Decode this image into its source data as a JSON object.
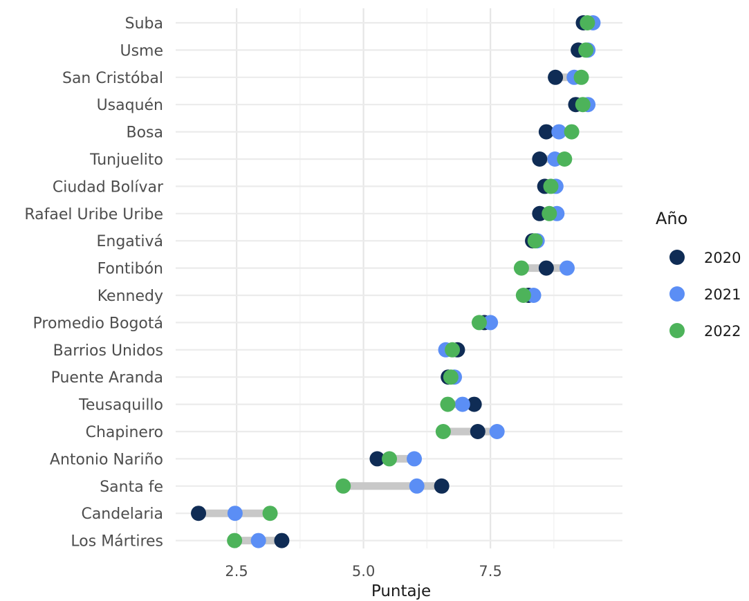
{
  "chart_data": {
    "type": "dumbbell",
    "xlabel": "Puntaje",
    "ylabel": "",
    "xlim": [
      1.3,
      10.1
    ],
    "xticks": [
      2.5,
      5.0,
      7.5
    ],
    "xtick_labels": [
      "2.5",
      "5.0",
      "7.5"
    ],
    "grid": true,
    "legend": {
      "title": "Año",
      "placement": "right",
      "entries": [
        {
          "name": "2020",
          "color": "#0f2c55"
        },
        {
          "name": "2021",
          "color": "#5b8ef5"
        },
        {
          "name": "2022",
          "color": "#4db35a"
        }
      ]
    },
    "categories": [
      "Suba",
      "Usme",
      "San Cristóbal",
      "Usaquén",
      "Bosa",
      "Tunjuelito",
      "Ciudad Bolívar",
      "Rafael Uribe Uribe",
      "Engativá",
      "Fontibón",
      "Kennedy",
      "Promedio Bogotá",
      "Barrios Unidos",
      "Puente Aranda",
      "Teusaquillo",
      "Chapinero",
      "Antonio Nariño",
      "Santa fe",
      "Candelaria",
      "Los Mártires"
    ],
    "series": [
      {
        "name": "2020",
        "color": "#0f2c55",
        "values": [
          9.33,
          9.23,
          8.78,
          9.18,
          8.6,
          8.47,
          8.57,
          8.47,
          8.33,
          8.6,
          8.25,
          7.38,
          6.85,
          6.67,
          7.18,
          7.25,
          5.27,
          6.54,
          1.75,
          3.39
        ]
      },
      {
        "name": "2021",
        "color": "#5b8ef5",
        "values": [
          9.52,
          9.42,
          9.15,
          9.42,
          8.85,
          8.77,
          8.79,
          8.81,
          8.42,
          9.01,
          8.35,
          7.5,
          6.62,
          6.79,
          6.95,
          7.63,
          6.0,
          6.05,
          2.47,
          2.93
        ]
      },
      {
        "name": "2022",
        "color": "#4db35a",
        "values": [
          9.41,
          9.38,
          9.29,
          9.32,
          9.1,
          8.96,
          8.69,
          8.66,
          8.38,
          8.11,
          8.15,
          7.28,
          6.75,
          6.72,
          6.66,
          6.57,
          5.51,
          4.6,
          3.16,
          2.46
        ]
      }
    ]
  }
}
